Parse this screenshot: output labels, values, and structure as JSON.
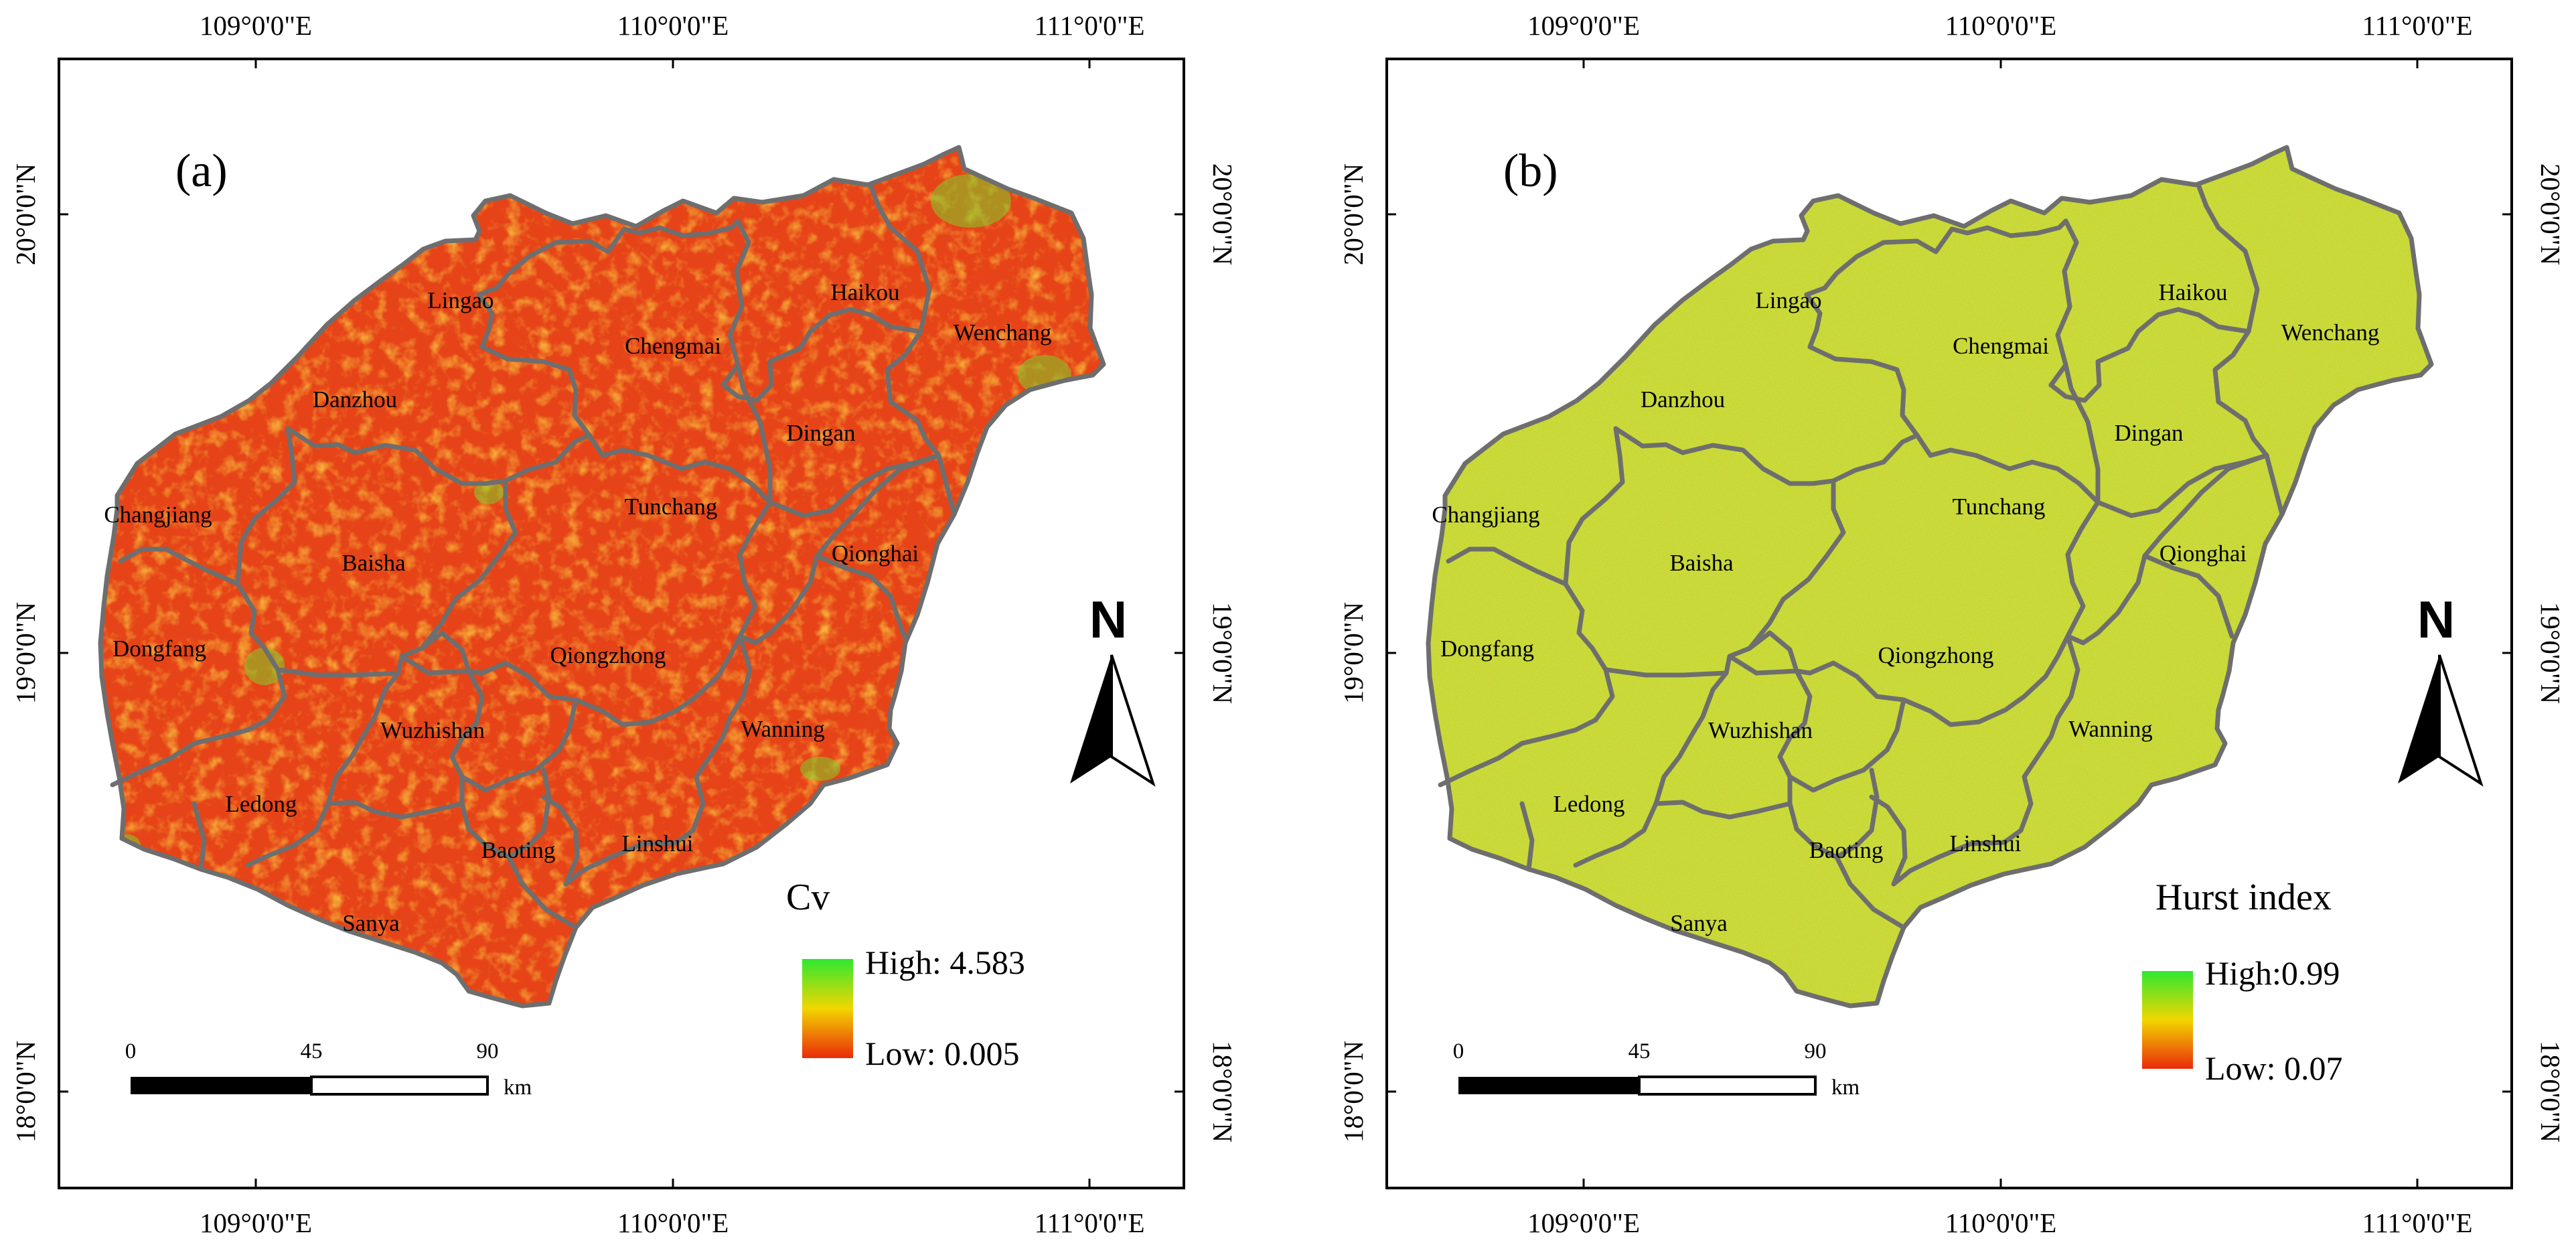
{
  "figure": {
    "panels": [
      {
        "id": "a",
        "label": "(a)",
        "variable": "Cv",
        "legend": {
          "title": "Cv",
          "high_label": "High: 4.583",
          "low_label": "Low: 0.005",
          "high_color": "#2ee830",
          "mid_color": "#f2d600",
          "low_color": "#ea2a0a"
        },
        "land_color": "#e64418",
        "boundary_color": "#6e6e6e"
      },
      {
        "id": "b",
        "label": "(b)",
        "variable": "Hurst index",
        "legend": {
          "title": "Hurst index",
          "high_label": "High:0.99",
          "low_label": "Low: 0.07",
          "high_color": "#2ee830",
          "mid_color": "#f2d600",
          "low_color": "#ea2a0a"
        },
        "land_color": "#c9d634",
        "boundary_color": "#6e6e6e"
      }
    ],
    "axes": {
      "lon_labels": [
        "109°0'0\"E",
        "110°0'0\"E",
        "111°0'0\"E"
      ],
      "lat_labels": [
        "20°0'0\"N",
        "19°0'0\"N",
        "18°0'0\"N"
      ]
    },
    "scale_bar": {
      "ticks": [
        "0",
        "45",
        "90"
      ],
      "unit": "km"
    },
    "north_arrow": {
      "letter": "N"
    },
    "regions": [
      "Lingao",
      "Chengmai",
      "Haikou",
      "Wenchang",
      "Danzhou",
      "Dingan",
      "Changjiang",
      "Tunchang",
      "Qionghai",
      "Baisha",
      "Dongfang",
      "Qiongzhong",
      "Wuzhishan",
      "Wanning",
      "Ledong",
      "Baoting",
      "Linshui",
      "Sanya"
    ]
  }
}
